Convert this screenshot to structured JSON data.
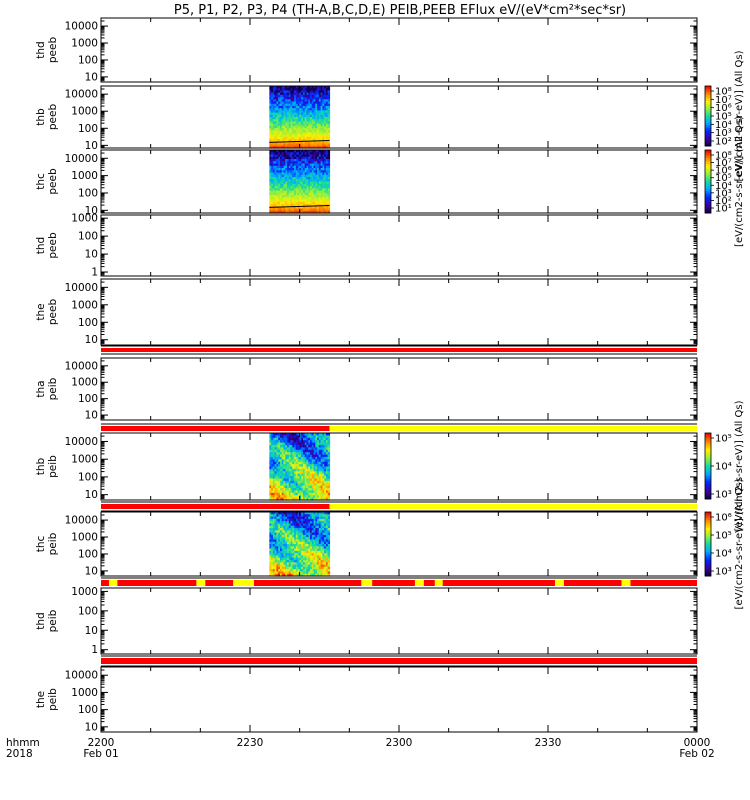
{
  "title": "P5, P1, P2, P3, P4 (TH-A,B,C,D,E) PEIB,PEEB EFlux eV/(eV*cm²*sec*sr)",
  "x_axis": {
    "row_label_top": "hhmm",
    "row_label_bottom": "2018",
    "ticks": [
      {
        "hhmm": "2200",
        "date": "Feb 01"
      },
      {
        "hhmm": "2230",
        "date": ""
      },
      {
        "hhmm": "2300",
        "date": ""
      },
      {
        "hhmm": "2330",
        "date": ""
      },
      {
        "hhmm": "0000",
        "date": "Feb 02"
      }
    ]
  },
  "colorbars": [
    {
      "label": "[eV/(cm2-s-sr-eV)] (All Qs)",
      "tick_labels": [
        "10⁸",
        "10⁷",
        "10⁶",
        "10⁵",
        "10⁴",
        "10³",
        "10²"
      ]
    },
    {
      "label": "[eV/(cm2-s-sr-eV)] (All Qs)",
      "tick_labels": [
        "10⁸",
        "10⁷",
        "10⁶",
        "10⁵",
        "10⁴",
        "10³",
        "10²",
        "10¹"
      ]
    },
    {
      "label": "[eV/(cm2-s-sr-eV)] (All Qs)",
      "tick_labels": [
        "10⁵",
        "10⁴",
        "10³"
      ]
    },
    {
      "label": "[eV/(cm2-s-sr-eV)] (All Qs)",
      "tick_labels": [
        "10⁶",
        "10⁵",
        "10⁴",
        "10³"
      ]
    }
  ],
  "chart_data": [
    {
      "type": "heatmap",
      "ylabel": "thd peeb",
      "scale": "log",
      "y_ticks": [
        "10",
        "100",
        "1000",
        "10000"
      ],
      "ylim": [
        5,
        30000
      ],
      "data": "none",
      "status_bar": "none"
    },
    {
      "type": "heatmap",
      "ylabel": "thb peeb",
      "scale": "log",
      "y_ticks": [
        "10",
        "100",
        "1000",
        "10000"
      ],
      "ylim": [
        7,
        30000
      ],
      "data": "spectrogram 22:34-22:46",
      "status_bar": "none"
    },
    {
      "type": "heatmap",
      "ylabel": "thc peeb",
      "scale": "log",
      "y_ticks": [
        "10",
        "100",
        "1000",
        "10000"
      ],
      "ylim": [
        7,
        30000
      ],
      "data": "spectrogram 22:34-22:46",
      "status_bar": "none"
    },
    {
      "type": "heatmap",
      "ylabel": "thd peeb",
      "scale": "log",
      "y_ticks": [
        "1",
        "10",
        "100",
        "1000"
      ],
      "ylim": [
        0.6,
        1500
      ],
      "data": "none",
      "status_bar": "none"
    },
    {
      "type": "heatmap",
      "ylabel": "the peeb",
      "scale": "log",
      "y_ticks": [
        "10",
        "100",
        "1000",
        "10000"
      ],
      "ylim": [
        5,
        30000
      ],
      "data": "none",
      "status_bar": "red"
    },
    {
      "type": "heatmap",
      "ylabel": "tha peib",
      "scale": "log",
      "y_ticks": [
        "10",
        "100",
        "1000",
        "10000"
      ],
      "ylim": [
        5,
        30000
      ],
      "data": "none",
      "status_bar": "red then yellow after 22:46"
    },
    {
      "type": "heatmap",
      "ylabel": "thb peib",
      "scale": "log",
      "y_ticks": [
        "10",
        "100",
        "1000",
        "10000"
      ],
      "ylim": [
        5,
        30000
      ],
      "data": "spectrogram 22:34-22:46",
      "status_bar": "red then yellow after 22:46"
    },
    {
      "type": "heatmap",
      "ylabel": "thc peib",
      "scale": "log",
      "y_ticks": [
        "10",
        "100",
        "1000",
        "10000"
      ],
      "ylim": [
        5,
        30000
      ],
      "data": "spectrogram 22:34-22:46",
      "status_bar": "red with yellow marks"
    },
    {
      "type": "heatmap",
      "ylabel": "thd peib",
      "scale": "log",
      "y_ticks": [
        "1",
        "10",
        "100",
        "1000"
      ],
      "ylim": [
        0.6,
        1500
      ],
      "data": "none",
      "status_bar": "red"
    },
    {
      "type": "heatmap",
      "ylabel": "the peib",
      "scale": "log",
      "y_ticks": [
        "10",
        "100",
        "1000",
        "10000"
      ],
      "ylim": [
        5,
        30000
      ],
      "data": "none",
      "status_bar": "none"
    }
  ]
}
